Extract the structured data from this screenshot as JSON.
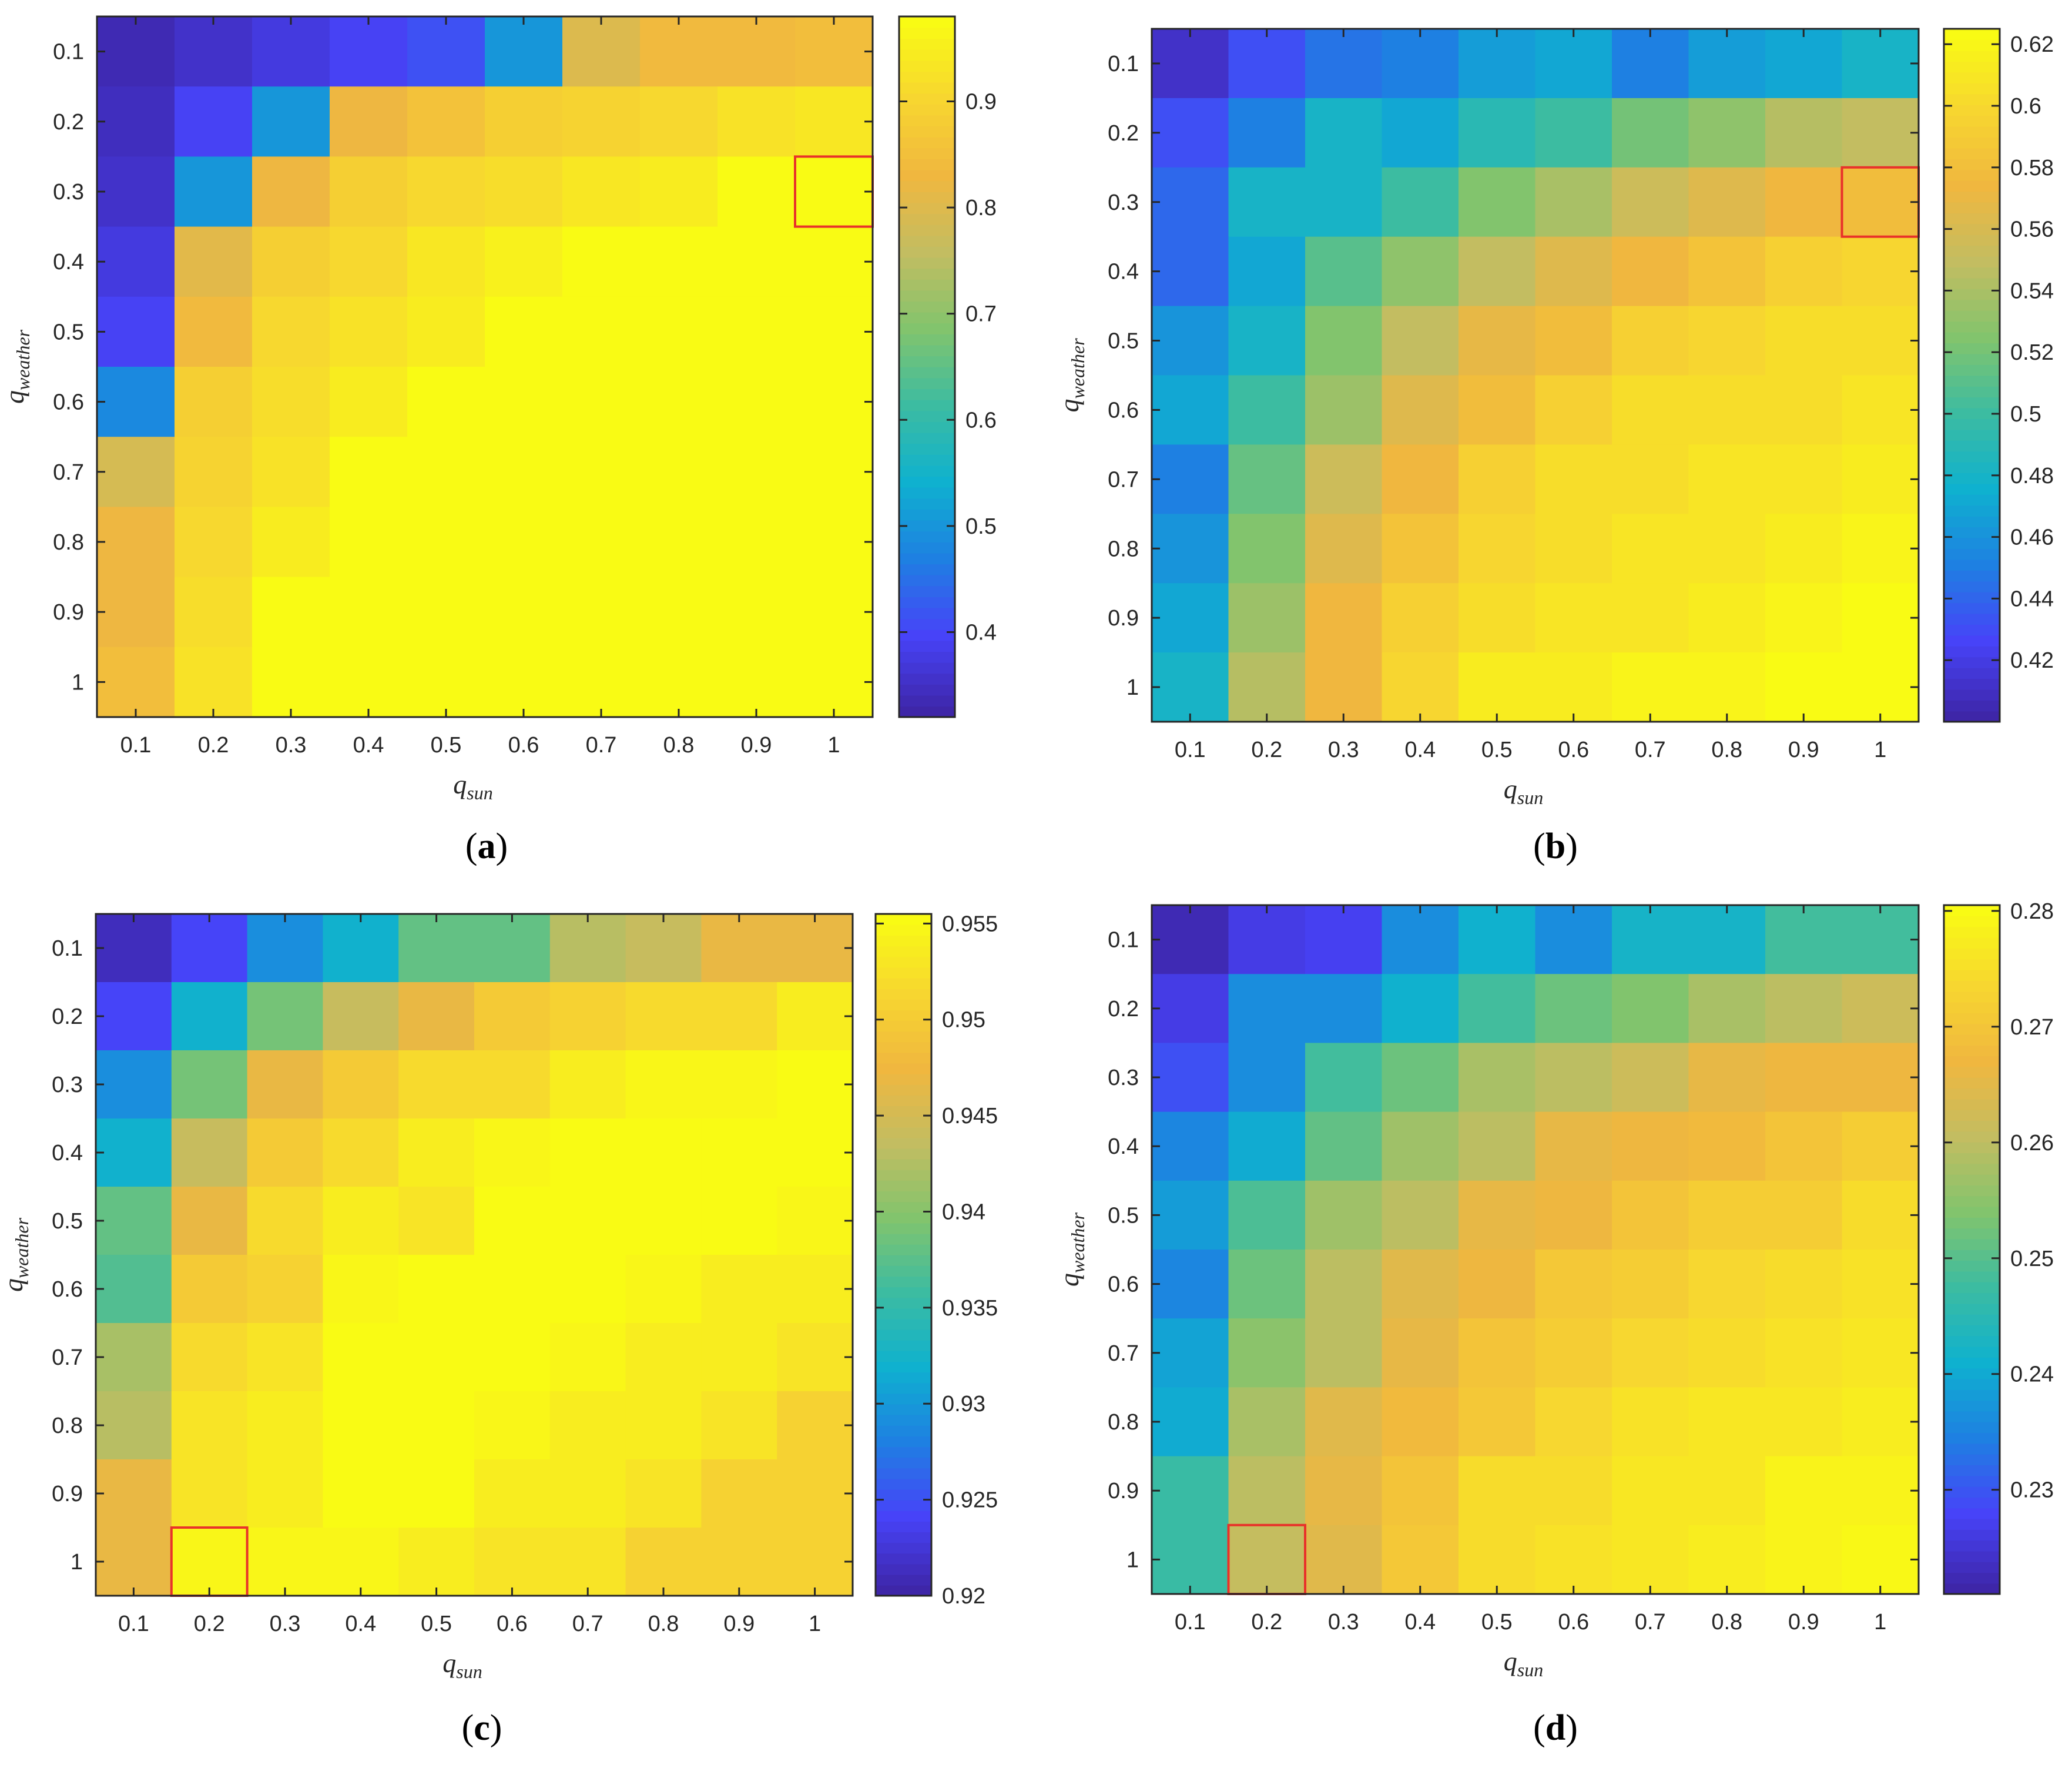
{
  "colormap": [
    "#3e26a8",
    "#4743f8",
    "#1e80e2",
    "#0fb1cf",
    "#3cbca1",
    "#82c46d",
    "#c3bd61",
    "#f0b73f",
    "#f7d630",
    "#f9fb14"
  ],
  "highlight_color": "#e8322a",
  "chart_data": [
    {
      "type": "heatmap",
      "panel": "(a)",
      "caption_letter": "a",
      "x": [
        "0.1",
        "0.2",
        "0.3",
        "0.4",
        "0.5",
        "0.6",
        "0.7",
        "0.8",
        "0.9",
        "1"
      ],
      "y": [
        "0.1",
        "0.2",
        "0.3",
        "0.4",
        "0.5",
        "0.6",
        "0.7",
        "0.8",
        "0.9",
        "1"
      ],
      "xlabel": {
        "base": "q",
        "sub": "sun"
      },
      "ylabel": {
        "base": "q",
        "sub": "weather"
      },
      "clim": [
        0.32,
        0.98
      ],
      "colorbar_ticks": [
        "0.4",
        "0.5",
        "0.6",
        "0.7",
        "0.8",
        "0.9"
      ],
      "values": [
        [
          0.33,
          0.35,
          0.37,
          0.39,
          0.41,
          0.5,
          0.8,
          0.84,
          0.84,
          0.85
        ],
        [
          0.34,
          0.39,
          0.5,
          0.83,
          0.86,
          0.89,
          0.9,
          0.91,
          0.93,
          0.94
        ],
        [
          0.35,
          0.5,
          0.83,
          0.89,
          0.91,
          0.92,
          0.94,
          0.95,
          0.98,
          0.98
        ],
        [
          0.37,
          0.81,
          0.89,
          0.91,
          0.94,
          0.96,
          0.98,
          0.98,
          0.98,
          0.98
        ],
        [
          0.39,
          0.84,
          0.91,
          0.93,
          0.95,
          0.98,
          0.98,
          0.98,
          0.98,
          0.98
        ],
        [
          0.48,
          0.89,
          0.92,
          0.95,
          0.98,
          0.98,
          0.98,
          0.98,
          0.98,
          0.98
        ],
        [
          0.79,
          0.9,
          0.93,
          0.98,
          0.98,
          0.98,
          0.98,
          0.98,
          0.98,
          0.98
        ],
        [
          0.83,
          0.91,
          0.95,
          0.98,
          0.98,
          0.98,
          0.98,
          0.98,
          0.98,
          0.98
        ],
        [
          0.83,
          0.92,
          0.98,
          0.98,
          0.98,
          0.98,
          0.98,
          0.98,
          0.98,
          0.98
        ],
        [
          0.85,
          0.93,
          0.98,
          0.98,
          0.98,
          0.98,
          0.98,
          0.98,
          0.98,
          0.98
        ]
      ],
      "highlight": {
        "x": "1",
        "y": "0.3"
      }
    },
    {
      "type": "heatmap",
      "panel": "(b)",
      "caption_letter": "b",
      "x": [
        "0.1",
        "0.2",
        "0.3",
        "0.4",
        "0.5",
        "0.6",
        "0.7",
        "0.8",
        "0.9",
        "1"
      ],
      "y": [
        "0.1",
        "0.2",
        "0.3",
        "0.4",
        "0.5",
        "0.6",
        "0.7",
        "0.8",
        "0.9",
        "1"
      ],
      "xlabel": {
        "base": "q",
        "sub": "sun"
      },
      "ylabel": {
        "base": "q",
        "sub": "weather"
      },
      "clim": [
        0.4,
        0.625
      ],
      "colorbar_ticks": [
        "0.42",
        "0.44",
        "0.46",
        "0.48",
        "0.5",
        "0.52",
        "0.54",
        "0.56",
        "0.58",
        "0.6",
        "0.62"
      ],
      "values": [
        [
          0.41,
          0.43,
          0.445,
          0.45,
          0.465,
          0.47,
          0.45,
          0.465,
          0.47,
          0.48
        ],
        [
          0.43,
          0.45,
          0.48,
          0.47,
          0.49,
          0.5,
          0.52,
          0.53,
          0.545,
          0.55
        ],
        [
          0.44,
          0.48,
          0.48,
          0.5,
          0.525,
          0.54,
          0.555,
          0.565,
          0.575,
          0.58
        ],
        [
          0.44,
          0.47,
          0.51,
          0.53,
          0.55,
          0.565,
          0.575,
          0.585,
          0.595,
          0.6
        ],
        [
          0.46,
          0.48,
          0.525,
          0.55,
          0.57,
          0.58,
          0.595,
          0.6,
          0.605,
          0.605
        ],
        [
          0.47,
          0.5,
          0.535,
          0.565,
          0.58,
          0.595,
          0.605,
          0.605,
          0.605,
          0.61
        ],
        [
          0.45,
          0.515,
          0.555,
          0.575,
          0.595,
          0.605,
          0.605,
          0.61,
          0.61,
          0.615
        ],
        [
          0.46,
          0.525,
          0.565,
          0.585,
          0.6,
          0.605,
          0.61,
          0.61,
          0.615,
          0.62
        ],
        [
          0.47,
          0.535,
          0.575,
          0.595,
          0.605,
          0.61,
          0.61,
          0.615,
          0.62,
          0.625
        ],
        [
          0.48,
          0.545,
          0.575,
          0.6,
          0.615,
          0.615,
          0.62,
          0.62,
          0.625,
          0.625
        ]
      ],
      "highlight": {
        "x": "1",
        "y": "0.3"
      }
    },
    {
      "type": "heatmap",
      "panel": "(c)",
      "caption_letter": "c",
      "x": [
        "0.1",
        "0.2",
        "0.3",
        "0.4",
        "0.5",
        "0.6",
        "0.7",
        "0.8",
        "0.9",
        "1"
      ],
      "y": [
        "0.1",
        "0.2",
        "0.3",
        "0.4",
        "0.5",
        "0.6",
        "0.7",
        "0.8",
        "0.9",
        "1"
      ],
      "xlabel": {
        "base": "q",
        "sub": "sun"
      },
      "ylabel": {
        "base": "q",
        "sub": "weather"
      },
      "clim": [
        0.92,
        0.9555
      ],
      "colorbar_ticks": [
        "0.92",
        "0.925",
        "0.93",
        "0.935",
        "0.94",
        "0.945",
        "0.95",
        "0.955"
      ],
      "values": [
        [
          0.921,
          0.924,
          0.929,
          0.932,
          0.938,
          0.938,
          0.943,
          0.944,
          0.947,
          0.947
        ],
        [
          0.924,
          0.932,
          0.939,
          0.944,
          0.947,
          0.95,
          0.951,
          0.952,
          0.952,
          0.954
        ],
        [
          0.929,
          0.939,
          0.947,
          0.95,
          0.952,
          0.952,
          0.954,
          0.955,
          0.955,
          0.956
        ],
        [
          0.932,
          0.944,
          0.95,
          0.952,
          0.954,
          0.955,
          0.956,
          0.956,
          0.956,
          0.956
        ],
        [
          0.938,
          0.947,
          0.952,
          0.954,
          0.953,
          0.956,
          0.956,
          0.956,
          0.956,
          0.955
        ],
        [
          0.937,
          0.95,
          0.951,
          0.955,
          0.956,
          0.956,
          0.956,
          0.955,
          0.954,
          0.954
        ],
        [
          0.942,
          0.952,
          0.953,
          0.956,
          0.956,
          0.956,
          0.955,
          0.954,
          0.954,
          0.953
        ],
        [
          0.943,
          0.953,
          0.954,
          0.956,
          0.956,
          0.955,
          0.954,
          0.954,
          0.953,
          0.951
        ],
        [
          0.947,
          0.953,
          0.954,
          0.956,
          0.956,
          0.954,
          0.954,
          0.953,
          0.951,
          0.951
        ],
        [
          0.947,
          0.955,
          0.955,
          0.955,
          0.954,
          0.953,
          0.953,
          0.951,
          0.951,
          0.951
        ]
      ],
      "highlight": {
        "x": "0.2",
        "y": "1"
      }
    },
    {
      "type": "heatmap",
      "panel": "(d)",
      "caption_letter": "d",
      "x": [
        "0.1",
        "0.2",
        "0.3",
        "0.4",
        "0.5",
        "0.6",
        "0.7",
        "0.8",
        "0.9",
        "1"
      ],
      "y": [
        "0.1",
        "0.2",
        "0.3",
        "0.4",
        "0.5",
        "0.6",
        "0.7",
        "0.8",
        "0.9",
        "1"
      ],
      "xlabel": {
        "base": "q",
        "sub": "sun"
      },
      "ylabel": {
        "base": "q",
        "sub": "weather"
      },
      "clim": [
        0.221,
        0.2805
      ],
      "colorbar_ticks": [
        "0.23",
        "0.24",
        "0.25",
        "0.26",
        "0.27",
        "0.28"
      ],
      "values": [
        [
          0.222,
          0.226,
          0.227,
          0.236,
          0.241,
          0.236,
          0.242,
          0.242,
          0.248,
          0.248
        ],
        [
          0.226,
          0.236,
          0.236,
          0.241,
          0.248,
          0.252,
          0.254,
          0.258,
          0.26,
          0.262
        ],
        [
          0.229,
          0.236,
          0.248,
          0.252,
          0.258,
          0.26,
          0.262,
          0.266,
          0.267,
          0.267
        ],
        [
          0.235,
          0.24,
          0.251,
          0.257,
          0.26,
          0.266,
          0.267,
          0.268,
          0.27,
          0.272
        ],
        [
          0.238,
          0.249,
          0.257,
          0.26,
          0.266,
          0.267,
          0.27,
          0.272,
          0.272,
          0.275
        ],
        [
          0.235,
          0.252,
          0.26,
          0.265,
          0.267,
          0.271,
          0.272,
          0.274,
          0.275,
          0.276
        ],
        [
          0.239,
          0.255,
          0.26,
          0.266,
          0.27,
          0.272,
          0.274,
          0.275,
          0.276,
          0.277
        ],
        [
          0.24,
          0.258,
          0.265,
          0.268,
          0.271,
          0.274,
          0.276,
          0.277,
          0.277,
          0.278
        ],
        [
          0.247,
          0.26,
          0.266,
          0.27,
          0.275,
          0.275,
          0.277,
          0.277,
          0.279,
          0.279
        ],
        [
          0.247,
          0.261,
          0.265,
          0.271,
          0.275,
          0.276,
          0.277,
          0.278,
          0.279,
          0.28
        ]
      ],
      "highlight": {
        "x": "0.2",
        "y": "1"
      }
    }
  ]
}
